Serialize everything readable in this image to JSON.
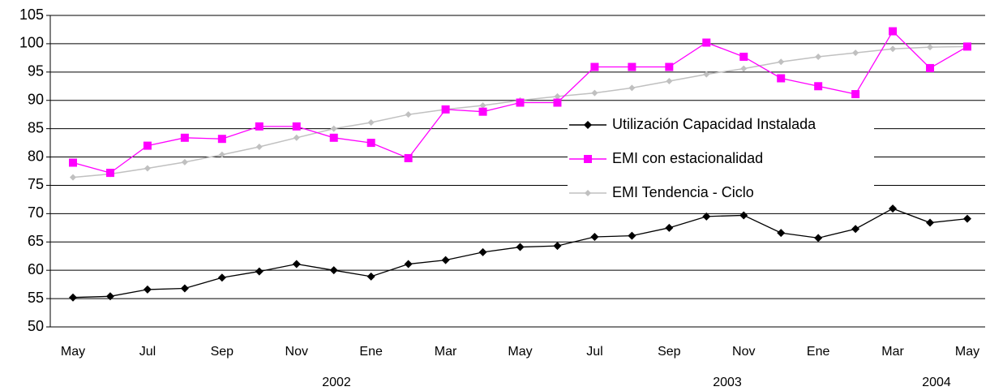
{
  "chart_data": {
    "type": "line",
    "categories": [
      "May",
      null,
      "Jul",
      null,
      "Sep",
      null,
      "Nov",
      null,
      "Ene",
      null,
      "Mar",
      null,
      "May",
      null,
      "Jul",
      null,
      "Sep",
      null,
      "Nov",
      null,
      "Ene",
      null,
      "Mar",
      null,
      "May"
    ],
    "x_groups": [
      "2002",
      "2003",
      "2004"
    ],
    "series": [
      {
        "name": "Utilización Capacidad Instalada",
        "color": "#000000",
        "marker": "diamond",
        "values": [
          55.2,
          55.4,
          56.6,
          56.8,
          58.7,
          59.8,
          61.1,
          60.0,
          58.9,
          61.1,
          61.8,
          63.2,
          64.1,
          64.3,
          65.9,
          66.1,
          67.5,
          69.5,
          69.7,
          66.6,
          65.7,
          67.3,
          70.9,
          68.4,
          69.1
        ]
      },
      {
        "name": "EMI con estacionalidad",
        "color": "#ff00ff",
        "marker": "square",
        "values": [
          79.0,
          77.2,
          82.0,
          83.4,
          83.2,
          85.4,
          85.4,
          83.4,
          82.5,
          79.8,
          88.4,
          88.0,
          89.6,
          89.6,
          95.9,
          95.9,
          95.9,
          100.2,
          97.7,
          93.9,
          92.5,
          91.1,
          102.2,
          95.7,
          99.5
        ]
      },
      {
        "name": "EMI Tendencia - Ciclo",
        "color": "#c0c0c0",
        "marker": "diamond-small",
        "values": [
          76.4,
          77.0,
          78.0,
          79.1,
          80.4,
          81.8,
          83.4,
          85.0,
          86.1,
          87.5,
          88.4,
          89.1,
          90.0,
          90.7,
          91.3,
          92.2,
          93.4,
          94.6,
          95.6,
          96.8,
          97.7,
          98.4,
          99.1,
          99.4,
          99.5
        ]
      }
    ],
    "ylim": [
      50,
      105
    ],
    "yticks": [
      50,
      55,
      60,
      65,
      70,
      75,
      80,
      85,
      90,
      95,
      100,
      105
    ],
    "grid": true,
    "legend": "center-right"
  }
}
